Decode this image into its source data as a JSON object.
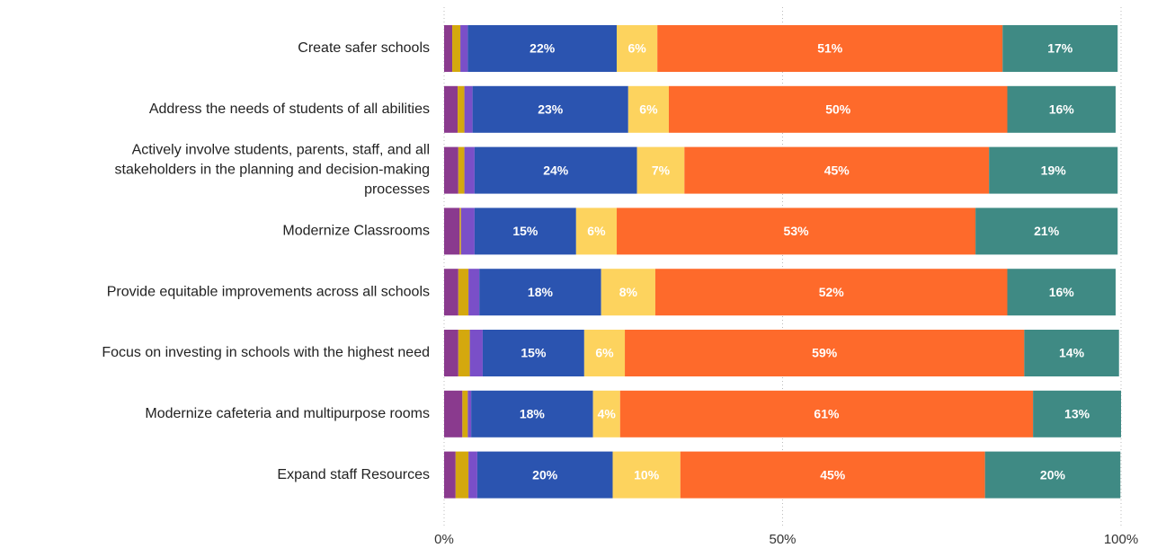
{
  "chart_data": {
    "type": "stacked-bar-horizontal",
    "categories": [
      "Create safer schools",
      "Address the needs of students of all abilities",
      [
        "Actively involve students, parents, staff, and all",
        "stakeholders in the planning and decision-making",
        "processes"
      ],
      "Modernize Classrooms",
      "Provide equitable improvements across all schools",
      "Focus on investing in schools with the highest need",
      "Modernize cafeteria and multipurpose rooms",
      "Expand staff Resources"
    ],
    "series": [
      {
        "color": "#8a3a8e",
        "values": [
          1.2,
          2,
          2.1,
          2.3,
          2.1,
          2.1,
          2.7,
          1.7
        ]
      },
      {
        "color": "#d4a80e",
        "values": [
          1.2,
          1,
          0.9,
          0.2,
          1.5,
          1.7,
          0.8,
          1.9
        ]
      },
      {
        "color": "#7a4fc8",
        "values": [
          1.1,
          1.2,
          1.5,
          2,
          1.6,
          1.9,
          0.5,
          1.3
        ]
      },
      {
        "color": "#2b54b0",
        "values": [
          22,
          23,
          24,
          15,
          18,
          15,
          18,
          20
        ],
        "value_labels": [
          "22%",
          "23%",
          "24%",
          "15%",
          "18%",
          "15%",
          "18%",
          "20%"
        ]
      },
      {
        "color": "#fdd35e",
        "values": [
          6,
          6,
          7,
          6,
          8,
          6,
          4,
          10
        ],
        "value_labels": [
          "6%",
          "6%",
          "7%",
          "6%",
          "8%",
          "6%",
          "4%",
          "10%"
        ]
      },
      {
        "color": "#fe6a2b",
        "values": [
          51,
          50,
          45,
          53,
          52,
          59,
          61,
          45
        ],
        "value_labels": [
          "51%",
          "50%",
          "45%",
          "53%",
          "52%",
          "59%",
          "61%",
          "45%"
        ]
      },
      {
        "color": "#3f8a84",
        "values": [
          17,
          16,
          19,
          21,
          16,
          14,
          13,
          20
        ],
        "value_labels": [
          "17%",
          "16%",
          "19%",
          "21%",
          "16%",
          "14%",
          "13%",
          "20%"
        ]
      }
    ],
    "xlim": [
      0,
      100
    ],
    "xticks": [
      {
        "value": 0,
        "label": "0%"
      },
      {
        "value": 50,
        "label": "50%"
      },
      {
        "value": 100,
        "label": "100%"
      }
    ],
    "grid": true
  }
}
